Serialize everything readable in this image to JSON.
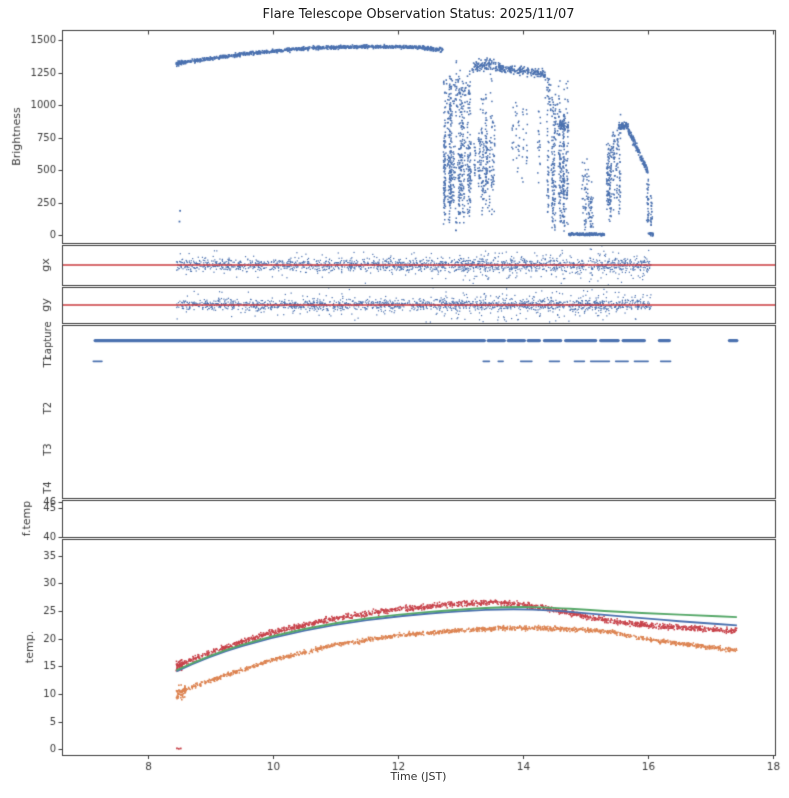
{
  "chart_data": {
    "type": "scatter",
    "title": "Flare Telescope Observation Status: 2025/11/07",
    "xlabel": "Time (JST)",
    "x_range": [
      6.62,
      18.03
    ],
    "x_ticks": [
      8,
      10,
      12,
      14,
      16,
      18
    ],
    "legend": "none",
    "grid": "off",
    "colors": {
      "blue": "#4c72b0",
      "red": "#c8434b",
      "line_red": "#cb3a3e",
      "green": "#55a868",
      "orange": "#dd8452",
      "axis": "#3c3c3c"
    },
    "panels": [
      {
        "id": "brightness",
        "ylabel": "Brightness",
        "ylim": [
          -60,
          1580
        ],
        "yticks": [
          0,
          250,
          500,
          750,
          1000,
          1250,
          1500
        ],
        "series": [
          {
            "type": "band",
            "color": "blue",
            "x0": 8.45,
            "x1": 8.58,
            "y0": 1322,
            "y1": 1332,
            "j": 16,
            "n": 60
          },
          {
            "type": "pts",
            "color": "blue",
            "points": [
              [
                8.5,
                105
              ],
              [
                8.51,
                188
              ]
            ]
          },
          {
            "type": "band",
            "color": "blue",
            "x0": 8.58,
            "x1": 9.6,
            "y0": 1332,
            "y1": 1401,
            "j": 12,
            "n": 240
          },
          {
            "type": "band",
            "color": "blue",
            "x0": 9.6,
            "x1": 10.6,
            "y0": 1401,
            "y1": 1440,
            "j": 11,
            "n": 240
          },
          {
            "type": "band",
            "color": "blue",
            "x0": 10.6,
            "x1": 11.4,
            "y0": 1442,
            "y1": 1453,
            "j": 11,
            "n": 200
          },
          {
            "type": "band",
            "color": "blue",
            "x0": 11.4,
            "x1": 12.4,
            "y0": 1453,
            "y1": 1446,
            "j": 11,
            "n": 240
          },
          {
            "type": "band",
            "color": "blue",
            "x0": 12.4,
            "x1": 12.72,
            "y0": 1440,
            "y1": 1428,
            "j": 14,
            "n": 90
          },
          {
            "type": "streaks",
            "color": "blue",
            "x0": 12.72,
            "x1": 13.16,
            "ymin": 0,
            "ymax": 1400,
            "k": 24,
            "m": 26
          },
          {
            "type": "band",
            "color": "blue",
            "x0": 12.72,
            "x1": 13.16,
            "y0": 1150,
            "y1": 1050,
            "j": 130,
            "n": 70
          },
          {
            "type": "streaks",
            "color": "blue",
            "x0": 13.16,
            "x1": 13.56,
            "ymin": 150,
            "ymax": 1340,
            "k": 14,
            "m": 18
          },
          {
            "type": "band",
            "color": "blue",
            "x0": 13.18,
            "x1": 13.56,
            "y0": 1295,
            "y1": 1322,
            "j": 40,
            "n": 90
          },
          {
            "type": "band",
            "color": "blue",
            "x0": 13.56,
            "x1": 14.35,
            "y0": 1292,
            "y1": 1238,
            "j": 28,
            "n": 190
          },
          {
            "type": "streaks",
            "color": "blue",
            "x0": 13.7,
            "x1": 14.35,
            "ymin": 350,
            "ymax": 1250,
            "k": 7,
            "m": 10
          },
          {
            "type": "streaks",
            "color": "blue",
            "x0": 14.35,
            "x1": 14.72,
            "ymin": 0,
            "ymax": 1260,
            "k": 18,
            "m": 22
          },
          {
            "type": "band",
            "color": "blue",
            "x0": 14.35,
            "x1": 14.62,
            "y0": 1150,
            "y1": 820,
            "j": 140,
            "n": 50
          },
          {
            "type": "band",
            "color": "blue",
            "x0": 14.58,
            "x1": 14.73,
            "y0": 862,
            "y1": 828,
            "j": 30,
            "n": 50
          },
          {
            "type": "band",
            "color": "blue",
            "x0": 14.73,
            "x1": 15.3,
            "y0": 9,
            "y1": 7,
            "j": 8,
            "n": 200
          },
          {
            "type": "streaks",
            "color": "blue",
            "x0": 14.85,
            "x1": 15.12,
            "ymin": 0,
            "ymax": 640,
            "k": 8,
            "m": 12
          },
          {
            "type": "streaks",
            "color": "blue",
            "x0": 15.3,
            "x1": 15.56,
            "ymin": 80,
            "ymax": 830,
            "k": 12,
            "m": 14
          },
          {
            "type": "band",
            "color": "blue",
            "x0": 15.34,
            "x1": 15.56,
            "y0": 420,
            "y1": 800,
            "j": 150,
            "n": 60
          },
          {
            "type": "band",
            "color": "blue",
            "x0": 15.52,
            "x1": 15.68,
            "y0": 838,
            "y1": 842,
            "j": 22,
            "n": 70
          },
          {
            "type": "band",
            "color": "blue",
            "x0": 15.68,
            "x1": 16.0,
            "y0": 812,
            "y1": 486,
            "j": 26,
            "n": 150
          },
          {
            "type": "streaks",
            "color": "blue",
            "x0": 15.98,
            "x1": 16.06,
            "ymin": 0,
            "ymax": 470,
            "k": 5,
            "m": 12
          },
          {
            "type": "band",
            "color": "blue",
            "x0": 16.0,
            "x1": 16.08,
            "y0": 10,
            "y1": 6,
            "j": 8,
            "n": 20
          }
        ]
      },
      {
        "id": "gx",
        "ylabel": "gx",
        "ylim": [
          -1.35,
          1.35
        ],
        "yticks": [],
        "series": [
          {
            "type": "band",
            "color": "blue",
            "x0": 8.45,
            "x1": 16.05,
            "y0": 0,
            "y1": 0,
            "j": 0.35,
            "n": 1500,
            "size": 1.2
          },
          {
            "type": "band",
            "color": "blue",
            "x0": 8.45,
            "x1": 16.05,
            "y0": 0,
            "y1": 0,
            "j": 0.8,
            "n": 260,
            "size": 1.2
          },
          {
            "type": "band",
            "color": "blue",
            "x0": 12.7,
            "x1": 16.05,
            "y0": 0,
            "y1": 0,
            "j": 1.2,
            "n": 150,
            "size": 1.2
          },
          {
            "type": "hline",
            "color": "line_red",
            "y": 0,
            "x0": 6.62,
            "x1": 18.03,
            "lw": 1.5
          }
        ]
      },
      {
        "id": "gy",
        "ylabel": "gy",
        "ylim": [
          -1.35,
          1.35
        ],
        "yticks": [],
        "series": [
          {
            "type": "band",
            "color": "blue",
            "x0": 8.45,
            "x1": 16.05,
            "y0": 0,
            "y1": 0,
            "j": 0.33,
            "n": 1450,
            "size": 1.2
          },
          {
            "type": "band",
            "color": "blue",
            "x0": 8.45,
            "x1": 16.05,
            "y0": 0,
            "y1": 0,
            "j": 0.85,
            "n": 280,
            "size": 1.2
          },
          {
            "type": "band",
            "color": "blue",
            "x0": 12.7,
            "x1": 16.05,
            "y0": 0,
            "y1": 0,
            "j": 1.25,
            "n": 170,
            "size": 1.2
          },
          {
            "type": "hline",
            "color": "line_red",
            "y": 0,
            "x0": 6.62,
            "x1": 18.03,
            "lw": 1.5
          }
        ]
      },
      {
        "id": "status",
        "categories": [
          {
            "label": "capture",
            "pos": 0.09,
            "lw": 3.2,
            "segments": [
              [
                7.15,
                13.38
              ],
              [
                13.44,
                13.7
              ],
              [
                13.76,
                14.02
              ],
              [
                14.08,
                14.26
              ],
              [
                14.34,
                14.6
              ],
              [
                14.68,
                15.16
              ],
              [
                15.24,
                15.52
              ],
              [
                15.6,
                15.94
              ],
              [
                16.18,
                16.34
              ],
              [
                17.3,
                17.42
              ]
            ]
          },
          {
            "label": "T1",
            "pos": 0.21,
            "lw": 1.6,
            "segments": [
              [
                7.12,
                7.26
              ],
              [
                13.36,
                13.46
              ],
              [
                13.6,
                13.68
              ],
              [
                13.96,
                14.14
              ],
              [
                14.42,
                14.58
              ],
              [
                14.82,
                14.98
              ],
              [
                15.08,
                15.38
              ],
              [
                15.48,
                15.68
              ],
              [
                15.78,
                16.0
              ],
              [
                16.2,
                16.36
              ]
            ]
          },
          {
            "label": "T2",
            "pos": 0.48,
            "lw": 1.6,
            "segments": []
          },
          {
            "label": "T3",
            "pos": 0.72,
            "lw": 1.6,
            "segments": []
          },
          {
            "label": "T4",
            "pos": 0.94,
            "lw": 1.6,
            "segments": []
          }
        ]
      },
      {
        "id": "ftemp",
        "ylabel": "f.temp",
        "ylim": [
          40,
          46.3
        ],
        "yticks": [
          40,
          45,
          46
        ],
        "series": []
      },
      {
        "id": "temp",
        "ylabel": "temp.",
        "ylim": [
          -1,
          38
        ],
        "yticks": [
          0,
          5,
          10,
          15,
          20,
          25,
          30,
          35
        ],
        "series": [
          {
            "type": "ncurve",
            "color": "red",
            "j": 0.42,
            "n": 1700,
            "points": [
              [
                8.45,
                15.0
              ],
              [
                9,
                17.6
              ],
              [
                10,
                21.2
              ],
              [
                11,
                23.7
              ],
              [
                12,
                25.3
              ],
              [
                13,
                26.3
              ],
              [
                13.5,
                26.6
              ],
              [
                14,
                26.1
              ],
              [
                14.5,
                25.2
              ],
              [
                15,
                24.0
              ],
              [
                15.5,
                23.0
              ],
              [
                16,
                22.4
              ],
              [
                16.5,
                22.0
              ],
              [
                17,
                21.7
              ],
              [
                17.42,
                21.4
              ]
            ]
          },
          {
            "type": "band",
            "color": "red",
            "x0": 8.45,
            "x1": 8.55,
            "y0": 15.0,
            "y1": 15.3,
            "j": 0.9,
            "n": 40
          },
          {
            "type": "pts",
            "color": "red",
            "points": [
              [
                8.46,
                0.2
              ],
              [
                8.49,
                0.12
              ],
              [
                8.52,
                0.18
              ]
            ]
          },
          {
            "type": "ncurve",
            "color": "orange",
            "j": 0.32,
            "n": 1500,
            "points": [
              [
                8.45,
                10.2
              ],
              [
                9,
                12.5
              ],
              [
                10,
                16.2
              ],
              [
                11,
                18.9
              ],
              [
                12,
                20.6
              ],
              [
                13,
                21.5
              ],
              [
                13.7,
                21.9
              ],
              [
                14.3,
                21.9
              ],
              [
                15,
                21.6
              ],
              [
                15.4,
                21.2
              ],
              [
                15.8,
                20.3
              ],
              [
                16.2,
                19.5
              ],
              [
                16.8,
                18.7
              ],
              [
                17.42,
                17.9
              ]
            ]
          },
          {
            "type": "band",
            "color": "orange",
            "x0": 8.45,
            "x1": 8.6,
            "y0": 10.0,
            "y1": 10.6,
            "j": 1.0,
            "n": 50
          },
          {
            "type": "curve",
            "color": "blue",
            "lw": 1.8,
            "points": [
              [
                8.45,
                14.1
              ],
              [
                9,
                17.0
              ],
              [
                10,
                20.3
              ],
              [
                11,
                22.6
              ],
              [
                12,
                24.1
              ],
              [
                13,
                25.0
              ],
              [
                13.8,
                25.4
              ],
              [
                14.5,
                25.1
              ],
              [
                15,
                24.6
              ],
              [
                15.6,
                24.0
              ],
              [
                16.2,
                23.4
              ],
              [
                16.8,
                22.9
              ],
              [
                17.42,
                22.4
              ]
            ]
          },
          {
            "type": "curve",
            "color": "green",
            "lw": 1.9,
            "points": [
              [
                8.45,
                14.3
              ],
              [
                9,
                17.2
              ],
              [
                10,
                20.6
              ],
              [
                11,
                22.9
              ],
              [
                12,
                24.4
              ],
              [
                13,
                25.3
              ],
              [
                13.8,
                25.8
              ],
              [
                14.5,
                25.6
              ],
              [
                15,
                25.2
              ],
              [
                15.6,
                24.8
              ],
              [
                16.2,
                24.5
              ],
              [
                16.8,
                24.2
              ],
              [
                17.42,
                23.9
              ]
            ]
          }
        ]
      }
    ]
  }
}
